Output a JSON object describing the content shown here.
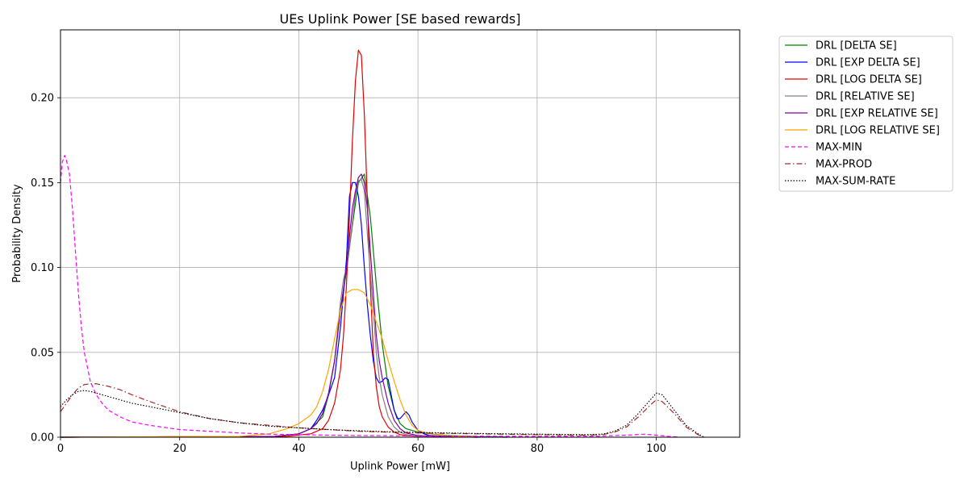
{
  "chart_data": {
    "type": "line",
    "title": "UEs Uplink Power [SE based rewards]",
    "xlabel": "Uplink Power [mW]",
    "ylabel": "Probability Density",
    "xlim": [
      0,
      114
    ],
    "ylim": [
      0,
      0.24
    ],
    "xticks": [
      0,
      20,
      40,
      60,
      80,
      100
    ],
    "yticks": [
      0.0,
      0.05,
      0.1,
      0.15,
      0.2
    ],
    "xtick_labels": [
      "0",
      "20",
      "40",
      "60",
      "80",
      "100"
    ],
    "ytick_labels": [
      "0.00",
      "0.05",
      "0.10",
      "0.15",
      "0.20"
    ],
    "grid": true,
    "legend_position": "outside-right-top",
    "series": [
      {
        "name": "DRL [DELTA SE]",
        "color": "#008000",
        "dash": "solid",
        "x": [
          0,
          36,
          40,
          42,
          44,
          45,
          46,
          47,
          48,
          49,
          50,
          51,
          52,
          53,
          54,
          55,
          56,
          57,
          58,
          59,
          60,
          62,
          65,
          70,
          75
        ],
        "y": [
          0,
          0.0005,
          0.002,
          0.005,
          0.012,
          0.025,
          0.045,
          0.075,
          0.098,
          0.125,
          0.15,
          0.155,
          0.13,
          0.09,
          0.055,
          0.03,
          0.016,
          0.008,
          0.005,
          0.004,
          0.003,
          0.002,
          0.001,
          0.0003,
          0
        ]
      },
      {
        "name": "DRL [EXP DELTA SE]",
        "color": "#0000ff",
        "dash": "solid",
        "x": [
          0,
          36,
          40,
          42,
          43,
          44,
          45,
          46,
          47,
          48,
          48.5,
          49,
          49.5,
          50,
          50.5,
          51,
          51.5,
          52,
          52.5,
          53,
          53.5,
          54,
          54.5,
          55,
          55.5,
          56,
          56.5,
          57,
          57.5,
          58,
          58.5,
          59,
          60,
          61,
          62,
          65,
          70,
          75
        ],
        "y": [
          0,
          0.0005,
          0.002,
          0.005,
          0.01,
          0.016,
          0.025,
          0.035,
          0.065,
          0.105,
          0.142,
          0.15,
          0.15,
          0.142,
          0.125,
          0.1,
          0.078,
          0.06,
          0.045,
          0.035,
          0.032,
          0.033,
          0.035,
          0.034,
          0.025,
          0.016,
          0.011,
          0.011,
          0.013,
          0.015,
          0.013,
          0.009,
          0.004,
          0.002,
          0.001,
          0.0005,
          0.0002,
          0
        ]
      },
      {
        "name": "DRL [LOG DELTA SE]",
        "color": "#e00000",
        "dash": "solid",
        "x": [
          0,
          38,
          42,
          44,
          45,
          46,
          47,
          47.5,
          48,
          48.5,
          49,
          49.5,
          50,
          50.5,
          51,
          51.5,
          52,
          52.5,
          53,
          53.5,
          54,
          55,
          56,
          57,
          58,
          60,
          65,
          70
        ],
        "y": [
          0,
          0.0005,
          0.002,
          0.005,
          0.01,
          0.02,
          0.04,
          0.06,
          0.09,
          0.13,
          0.175,
          0.21,
          0.228,
          0.225,
          0.19,
          0.14,
          0.09,
          0.05,
          0.03,
          0.018,
          0.012,
          0.006,
          0.003,
          0.0015,
          0.001,
          0.0005,
          0.0002,
          0
        ]
      },
      {
        "name": "DRL [RELATIVE SE]",
        "color": "#808080",
        "dash": "solid",
        "x": [
          0,
          36,
          40,
          42,
          43,
          44,
          45,
          46,
          47,
          47.5,
          48,
          48.5,
          49,
          49.5,
          50,
          50.5,
          51,
          51.5,
          52,
          52.5,
          53,
          53.5,
          54,
          55,
          56,
          57,
          58,
          60,
          65,
          70
        ],
        "y": [
          0,
          0.0005,
          0.002,
          0.005,
          0.008,
          0.014,
          0.026,
          0.045,
          0.08,
          0.093,
          0.1,
          0.112,
          0.127,
          0.143,
          0.151,
          0.152,
          0.145,
          0.12,
          0.097,
          0.075,
          0.05,
          0.035,
          0.025,
          0.012,
          0.006,
          0.003,
          0.0015,
          0.0005,
          0.0002,
          0
        ]
      },
      {
        "name": "DRL [EXP RELATIVE SE]",
        "color": "#8000a0",
        "dash": "solid",
        "x": [
          0,
          36,
          40,
          42,
          43,
          44,
          45,
          46,
          47,
          48,
          48.5,
          49,
          49.5,
          50,
          50.5,
          51,
          51.5,
          52,
          52.5,
          53,
          53.5,
          54,
          55,
          56,
          57,
          58,
          60,
          65,
          70
        ],
        "y": [
          0,
          0.0005,
          0.002,
          0.005,
          0.008,
          0.014,
          0.026,
          0.045,
          0.075,
          0.1,
          0.118,
          0.135,
          0.145,
          0.153,
          0.155,
          0.15,
          0.135,
          0.11,
          0.085,
          0.06,
          0.045,
          0.035,
          0.02,
          0.01,
          0.005,
          0.0025,
          0.001,
          0.0003,
          0
        ]
      },
      {
        "name": "DRL [LOG RELATIVE SE]",
        "color": "#ffa500",
        "dash": "solid",
        "x": [
          0,
          30,
          35,
          38,
          40,
          42,
          43,
          44,
          45,
          46,
          47,
          48,
          49,
          50,
          51,
          52,
          53,
          54,
          55,
          56,
          57,
          58,
          59,
          60,
          62,
          65,
          70
        ],
        "y": [
          0,
          0.0005,
          0.002,
          0.005,
          0.008,
          0.013,
          0.018,
          0.027,
          0.04,
          0.058,
          0.075,
          0.085,
          0.087,
          0.087,
          0.085,
          0.078,
          0.068,
          0.058,
          0.045,
          0.033,
          0.022,
          0.013,
          0.007,
          0.004,
          0.002,
          0.0008,
          0
        ]
      },
      {
        "name": "MAX-MIN",
        "color": "#ff00ff",
        "dash": "dashed",
        "x": [
          0,
          0.3,
          0.7,
          1,
          1.5,
          2,
          2.5,
          3,
          3.5,
          4,
          5,
          6,
          7,
          8,
          10,
          12,
          15,
          20,
          25,
          30,
          35,
          40,
          45,
          50,
          60,
          70,
          80,
          90,
          95,
          98,
          100,
          102,
          104
        ],
        "y": [
          0.15,
          0.162,
          0.166,
          0.163,
          0.155,
          0.135,
          0.11,
          0.085,
          0.065,
          0.05,
          0.033,
          0.025,
          0.02,
          0.016,
          0.012,
          0.009,
          0.007,
          0.0045,
          0.0035,
          0.0025,
          0.0018,
          0.0015,
          0.0012,
          0.001,
          0.0008,
          0.0006,
          0.0005,
          0.0006,
          0.0012,
          0.0018,
          0.0012,
          0.0005,
          0
        ]
      },
      {
        "name": "MAX-PROD",
        "color": "#a52a2a",
        "dash": "dashdot",
        "x": [
          0,
          1,
          2,
          3,
          4,
          5,
          6,
          8,
          10,
          12,
          15,
          20,
          25,
          30,
          35,
          40,
          45,
          50,
          55,
          60,
          70,
          80,
          88,
          91,
          93,
          95,
          97,
          99,
          100,
          101,
          103,
          105,
          107,
          108
        ],
        "y": [
          0.015,
          0.02,
          0.025,
          0.029,
          0.031,
          0.0315,
          0.0315,
          0.03,
          0.028,
          0.025,
          0.021,
          0.015,
          0.011,
          0.0085,
          0.007,
          0.0055,
          0.0045,
          0.0035,
          0.003,
          0.0025,
          0.002,
          0.0015,
          0.0012,
          0.0015,
          0.003,
          0.006,
          0.012,
          0.019,
          0.022,
          0.021,
          0.014,
          0.006,
          0.0015,
          0
        ]
      },
      {
        "name": "MAX-SUM-RATE",
        "color": "#000000",
        "dash": "dotted",
        "x": [
          0,
          1,
          2,
          3,
          4,
          5,
          6,
          8,
          10,
          12,
          15,
          20,
          25,
          30,
          35,
          40,
          45,
          50,
          55,
          60,
          70,
          80,
          88,
          91,
          93,
          95,
          97,
          99,
          100,
          101,
          103,
          105,
          107,
          108
        ],
        "y": [
          0.018,
          0.022,
          0.025,
          0.027,
          0.0275,
          0.027,
          0.026,
          0.024,
          0.022,
          0.02,
          0.018,
          0.0145,
          0.011,
          0.0085,
          0.0065,
          0.0055,
          0.0045,
          0.0038,
          0.0032,
          0.0028,
          0.0022,
          0.0018,
          0.0015,
          0.0018,
          0.0035,
          0.007,
          0.014,
          0.022,
          0.026,
          0.025,
          0.016,
          0.007,
          0.002,
          0
        ]
      }
    ]
  }
}
